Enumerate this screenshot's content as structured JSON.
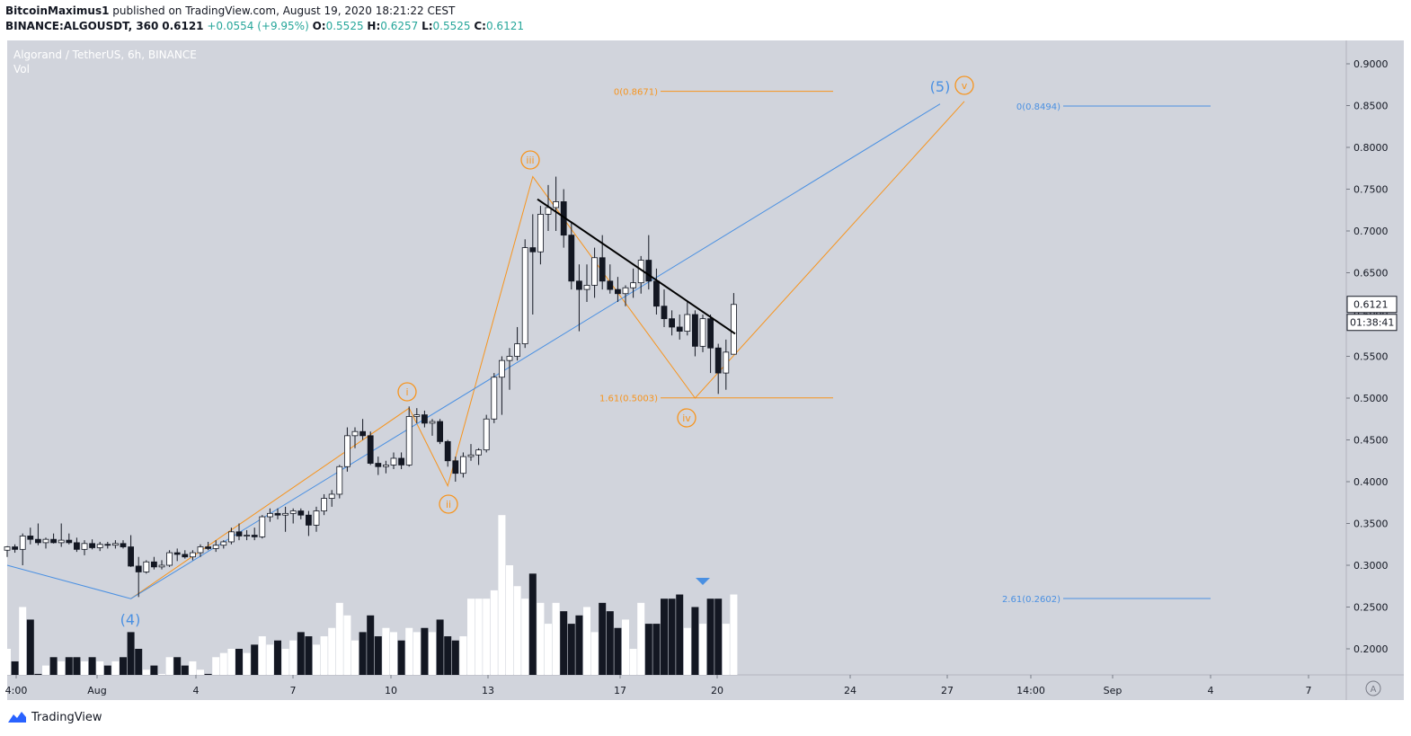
{
  "header": {
    "author": "BitcoinMaximus1",
    "published": "published on TradingView.com, August 19, 2020 18:21:22 CEST",
    "symbol": "BINANCE:ALGOUSDT, 360",
    "last": "0.6121",
    "change": "+0.0554 (+9.95%)",
    "o_label": "O:",
    "o": "0.5525",
    "h_label": "H:",
    "h": "0.6257",
    "l_label": "L:",
    "l": "0.5525",
    "c_label": "C:",
    "c": "0.6121"
  },
  "legend": {
    "pair": "Algorand / TetherUS, 6h, BINANCE",
    "vol": "Vol"
  },
  "footer": {
    "brand": "TradingView"
  },
  "colors": {
    "orange": "#f7941d",
    "blue": "#4a90e2",
    "bull": "#ffffff",
    "bear": "#131722",
    "bg": "#d1d4dc",
    "trend": "#000000"
  },
  "chart_data": {
    "type": "candlestick",
    "ylim": [
      0.17,
      0.92
    ],
    "yticks": [
      "0.9000",
      "0.8500",
      "0.8000",
      "0.7500",
      "0.7000",
      "0.6500",
      "0.6000",
      "0.5500",
      "0.5000",
      "0.4500",
      "0.4000",
      "0.3500",
      "0.3000",
      "0.2500",
      "0.2000"
    ],
    "xticks": [
      "4:00",
      "Aug",
      "4",
      "7",
      "10",
      "13",
      "17",
      "20",
      "24",
      "27",
      "14:00",
      "Sep",
      "4",
      "7"
    ],
    "price_label": "0.6121",
    "countdown": "01:38:41",
    "candles": [
      [
        0.318,
        0.323,
        0.31,
        0.322
      ],
      [
        0.322,
        0.325,
        0.315,
        0.319
      ],
      [
        0.319,
        0.338,
        0.3,
        0.335
      ],
      [
        0.335,
        0.345,
        0.325,
        0.331
      ],
      [
        0.331,
        0.35,
        0.324,
        0.327
      ],
      [
        0.327,
        0.333,
        0.32,
        0.331
      ],
      [
        0.331,
        0.338,
        0.326,
        0.327
      ],
      [
        0.327,
        0.35,
        0.322,
        0.33
      ],
      [
        0.33,
        0.338,
        0.325,
        0.327
      ],
      [
        0.327,
        0.333,
        0.316,
        0.319
      ],
      [
        0.319,
        0.33,
        0.312,
        0.326
      ],
      [
        0.326,
        0.331,
        0.319,
        0.321
      ],
      [
        0.321,
        0.328,
        0.317,
        0.325
      ],
      [
        0.325,
        0.328,
        0.32,
        0.324
      ],
      [
        0.324,
        0.33,
        0.32,
        0.326
      ],
      [
        0.326,
        0.33,
        0.32,
        0.322
      ],
      [
        0.322,
        0.336,
        0.298,
        0.299
      ],
      [
        0.299,
        0.31,
        0.262,
        0.292
      ],
      [
        0.292,
        0.306,
        0.29,
        0.304
      ],
      [
        0.304,
        0.31,
        0.295,
        0.298
      ],
      [
        0.298,
        0.306,
        0.295,
        0.3
      ],
      [
        0.3,
        0.318,
        0.298,
        0.315
      ],
      [
        0.315,
        0.32,
        0.305,
        0.313
      ],
      [
        0.313,
        0.318,
        0.308,
        0.31
      ],
      [
        0.31,
        0.318,
        0.306,
        0.315
      ],
      [
        0.315,
        0.325,
        0.31,
        0.322
      ],
      [
        0.322,
        0.328,
        0.318,
        0.32
      ],
      [
        0.32,
        0.33,
        0.316,
        0.324
      ],
      [
        0.324,
        0.33,
        0.32,
        0.328
      ],
      [
        0.328,
        0.345,
        0.325,
        0.34
      ],
      [
        0.34,
        0.35,
        0.33,
        0.335
      ],
      [
        0.335,
        0.342,
        0.33,
        0.336
      ],
      [
        0.336,
        0.345,
        0.33,
        0.334
      ],
      [
        0.334,
        0.36,
        0.332,
        0.358
      ],
      [
        0.358,
        0.368,
        0.352,
        0.362
      ],
      [
        0.362,
        0.368,
        0.355,
        0.36
      ],
      [
        0.36,
        0.37,
        0.34,
        0.362
      ],
      [
        0.362,
        0.368,
        0.35,
        0.365
      ],
      [
        0.365,
        0.368,
        0.355,
        0.36
      ],
      [
        0.36,
        0.365,
        0.335,
        0.348
      ],
      [
        0.348,
        0.37,
        0.34,
        0.365
      ],
      [
        0.365,
        0.385,
        0.36,
        0.38
      ],
      [
        0.38,
        0.39,
        0.37,
        0.385
      ],
      [
        0.385,
        0.42,
        0.38,
        0.418
      ],
      [
        0.418,
        0.465,
        0.412,
        0.455
      ],
      [
        0.455,
        0.465,
        0.44,
        0.46
      ],
      [
        0.46,
        0.475,
        0.45,
        0.455
      ],
      [
        0.455,
        0.46,
        0.42,
        0.422
      ],
      [
        0.422,
        0.43,
        0.408,
        0.418
      ],
      [
        0.418,
        0.425,
        0.41,
        0.42
      ],
      [
        0.42,
        0.435,
        0.415,
        0.428
      ],
      [
        0.428,
        0.435,
        0.415,
        0.42
      ],
      [
        0.42,
        0.49,
        0.418,
        0.478
      ],
      [
        0.478,
        0.488,
        0.47,
        0.48
      ],
      [
        0.48,
        0.485,
        0.465,
        0.47
      ],
      [
        0.47,
        0.475,
        0.455,
        0.472
      ],
      [
        0.472,
        0.475,
        0.445,
        0.448
      ],
      [
        0.448,
        0.45,
        0.418,
        0.425
      ],
      [
        0.425,
        0.43,
        0.4,
        0.41
      ],
      [
        0.41,
        0.435,
        0.405,
        0.43
      ],
      [
        0.43,
        0.445,
        0.425,
        0.432
      ],
      [
        0.432,
        0.44,
        0.42,
        0.438
      ],
      [
        0.438,
        0.48,
        0.435,
        0.475
      ],
      [
        0.475,
        0.53,
        0.47,
        0.525
      ],
      [
        0.525,
        0.55,
        0.48,
        0.545
      ],
      [
        0.545,
        0.56,
        0.51,
        0.55
      ],
      [
        0.55,
        0.585,
        0.545,
        0.565
      ],
      [
        0.565,
        0.69,
        0.56,
        0.68
      ],
      [
        0.68,
        0.72,
        0.6,
        0.675
      ],
      [
        0.675,
        0.73,
        0.66,
        0.72
      ],
      [
        0.72,
        0.755,
        0.7,
        0.728
      ],
      [
        0.728,
        0.765,
        0.7,
        0.735
      ],
      [
        0.735,
        0.75,
        0.68,
        0.695
      ],
      [
        0.695,
        0.71,
        0.63,
        0.64
      ],
      [
        0.64,
        0.66,
        0.58,
        0.63
      ],
      [
        0.63,
        0.66,
        0.615,
        0.635
      ],
      [
        0.635,
        0.68,
        0.62,
        0.668
      ],
      [
        0.668,
        0.695,
        0.63,
        0.64
      ],
      [
        0.64,
        0.66,
        0.625,
        0.63
      ],
      [
        0.63,
        0.645,
        0.615,
        0.625
      ],
      [
        0.625,
        0.635,
        0.61,
        0.632
      ],
      [
        0.632,
        0.655,
        0.62,
        0.638
      ],
      [
        0.638,
        0.67,
        0.625,
        0.665
      ],
      [
        0.665,
        0.695,
        0.63,
        0.64
      ],
      [
        0.64,
        0.655,
        0.6,
        0.61
      ],
      [
        0.61,
        0.63,
        0.585,
        0.595
      ],
      [
        0.595,
        0.605,
        0.575,
        0.585
      ],
      [
        0.585,
        0.6,
        0.57,
        0.58
      ],
      [
        0.58,
        0.615,
        0.575,
        0.6
      ],
      [
        0.6,
        0.605,
        0.55,
        0.562
      ],
      [
        0.562,
        0.6,
        0.555,
        0.595
      ],
      [
        0.595,
        0.6,
        0.53,
        0.56
      ],
      [
        0.56,
        0.565,
        0.505,
        0.53
      ],
      [
        0.53,
        0.57,
        0.51,
        0.555
      ],
      [
        0.5525,
        0.6257,
        0.5525,
        0.6121
      ]
    ],
    "volume": [
      0.2,
      0.185,
      0.25,
      0.235,
      0.17,
      0.18,
      0.19,
      0.185,
      0.19,
      0.19,
      0.185,
      0.19,
      0.185,
      0.18,
      0.185,
      0.19,
      0.22,
      0.2,
      0.175,
      0.18,
      0.17,
      0.19,
      0.19,
      0.18,
      0.185,
      0.175,
      0.17,
      0.19,
      0.195,
      0.2,
      0.2,
      0.195,
      0.205,
      0.215,
      0.205,
      0.21,
      0.2,
      0.21,
      0.22,
      0.215,
      0.205,
      0.215,
      0.225,
      0.255,
      0.24,
      0.21,
      0.22,
      0.24,
      0.215,
      0.225,
      0.22,
      0.21,
      0.225,
      0.22,
      0.225,
      0.22,
      0.235,
      0.215,
      0.21,
      0.215,
      0.26,
      0.26,
      0.26,
      0.27,
      0.36,
      0.3,
      0.275,
      0.26,
      0.29,
      0.255,
      0.23,
      0.255,
      0.245,
      0.23,
      0.24,
      0.25,
      0.22,
      0.255,
      0.245,
      0.225,
      0.235,
      0.2,
      0.255,
      0.23,
      0.23,
      0.26,
      0.26,
      0.265,
      0.225,
      0.25,
      0.23,
      0.26,
      0.26,
      0.23,
      0.265
    ],
    "fib_levels": [
      {
        "label": "0(0.8671)",
        "value": 0.8671,
        "color": "#f7941d"
      },
      {
        "label": "1.61(0.5003)",
        "value": 0.5003,
        "color": "#f7941d"
      },
      {
        "label": "0(0.8494)",
        "value": 0.8494,
        "color": "#4a90e2"
      },
      {
        "label": "2.61(0.2602)",
        "value": 0.2602,
        "color": "#4a90e2"
      }
    ],
    "waves": [
      {
        "label": "i",
        "color": "#f7941d"
      },
      {
        "label": "ii",
        "color": "#f7941d"
      },
      {
        "label": "iii",
        "color": "#f7941d"
      },
      {
        "label": "iv",
        "color": "#f7941d"
      },
      {
        "label": "v",
        "color": "#f7941d"
      },
      {
        "label": "(4)",
        "color": "#4a90e2"
      },
      {
        "label": "(5)",
        "color": "#4a90e2"
      }
    ]
  }
}
